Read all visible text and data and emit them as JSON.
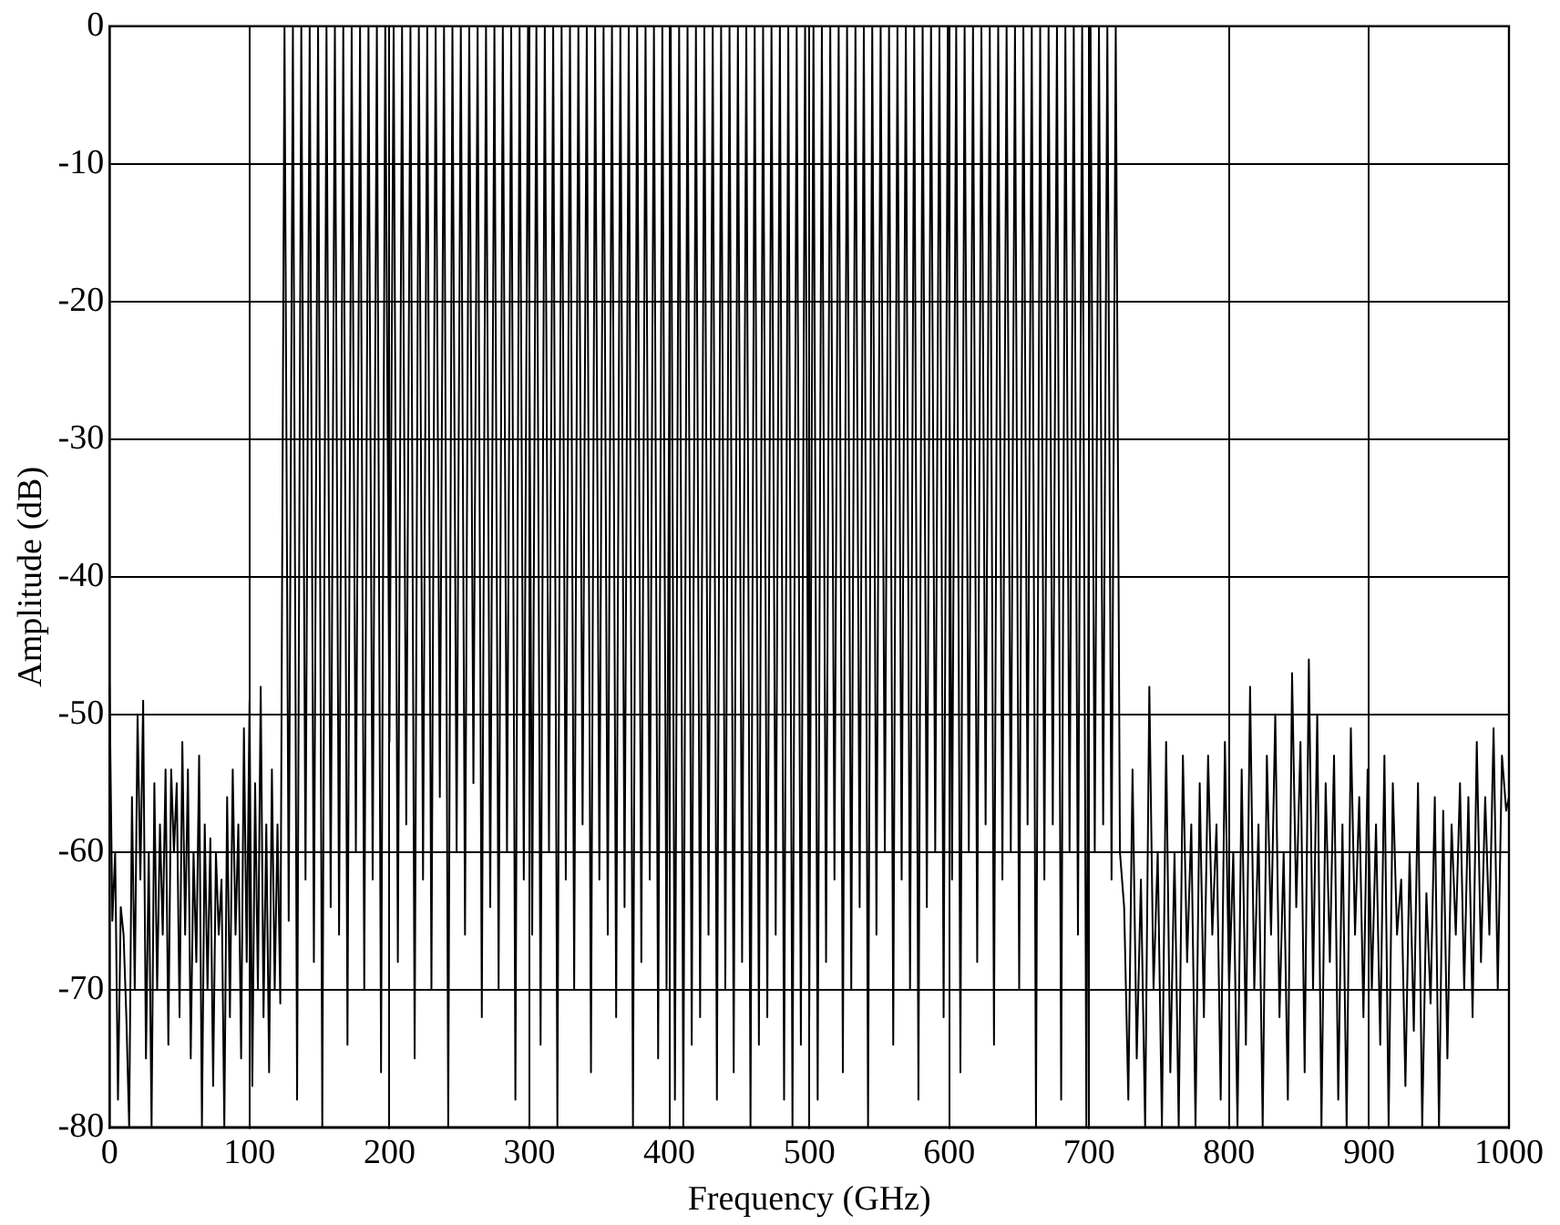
{
  "chart_data": {
    "type": "line",
    "xlabel": "Frequency (GHz)",
    "ylabel": "Amplitude (dB)",
    "color": "#000000",
    "marker": "none",
    "grid": true,
    "xlim": [
      0,
      1000
    ],
    "ylim": [
      -80,
      0
    ],
    "xticks": [
      0,
      100,
      200,
      300,
      400,
      500,
      600,
      700,
      800,
      900,
      1000
    ],
    "yticks": [
      -80,
      -70,
      -60,
      -50,
      -40,
      -30,
      -20,
      -10,
      0
    ],
    "x": [
      0,
      2,
      4,
      6,
      8,
      10,
      12,
      14,
      16,
      18,
      20,
      22,
      24,
      26,
      28,
      30,
      32,
      34,
      36,
      38,
      40,
      42,
      44,
      46,
      48,
      50,
      52,
      54,
      56,
      58,
      60,
      62,
      64,
      66,
      68,
      70,
      72,
      74,
      76,
      78,
      80,
      82,
      84,
      86,
      88,
      90,
      92,
      94,
      96,
      98,
      100,
      102,
      104,
      106,
      108,
      110,
      112,
      114,
      116,
      118,
      120,
      122,
      125,
      128,
      131,
      134,
      137,
      140,
      143,
      146,
      149,
      152,
      155,
      158,
      161,
      164,
      167,
      170,
      173,
      176,
      179,
      182,
      185,
      188,
      191,
      194,
      197,
      200,
      203,
      206,
      209,
      212,
      215,
      218,
      221,
      224,
      227,
      230,
      233,
      236,
      239,
      242,
      245,
      248,
      251,
      254,
      257,
      260,
      263,
      266,
      269,
      272,
      275,
      278,
      281,
      284,
      287,
      290,
      293,
      296,
      299,
      302,
      305,
      308,
      311,
      314,
      317,
      320,
      323,
      326,
      329,
      332,
      335,
      338,
      341,
      344,
      347,
      350,
      353,
      356,
      359,
      362,
      365,
      368,
      371,
      374,
      377,
      380,
      383,
      386,
      389,
      392,
      395,
      398,
      401,
      404,
      407,
      410,
      413,
      416,
      419,
      422,
      425,
      428,
      431,
      434,
      437,
      440,
      443,
      446,
      449,
      452,
      455,
      458,
      461,
      464,
      467,
      470,
      473,
      476,
      479,
      482,
      485,
      488,
      491,
      494,
      497,
      500,
      503,
      506,
      509,
      512,
      515,
      518,
      521,
      524,
      527,
      530,
      533,
      536,
      539,
      542,
      545,
      548,
      551,
      554,
      557,
      560,
      563,
      566,
      569,
      572,
      575,
      578,
      581,
      584,
      587,
      590,
      593,
      596,
      599,
      602,
      605,
      608,
      611,
      614,
      617,
      620,
      623,
      626,
      629,
      632,
      635,
      638,
      641,
      644,
      647,
      650,
      653,
      656,
      659,
      662,
      665,
      668,
      671,
      674,
      677,
      680,
      683,
      686,
      689,
      692,
      695,
      698,
      701,
      704,
      707,
      710,
      713,
      716,
      719,
      722,
      725,
      728,
      731,
      734,
      737,
      740,
      743,
      746,
      749,
      752,
      755,
      758,
      761,
      764,
      767,
      770,
      773,
      776,
      779,
      782,
      785,
      788,
      791,
      794,
      797,
      800,
      803,
      806,
      809,
      812,
      815,
      818,
      821,
      824,
      827,
      830,
      833,
      836,
      839,
      842,
      845,
      848,
      851,
      854,
      857,
      860,
      863,
      866,
      869,
      872,
      875,
      878,
      881,
      884,
      887,
      890,
      893,
      896,
      899,
      902,
      905,
      908,
      911,
      914,
      917,
      920,
      923,
      926,
      929,
      932,
      935,
      938,
      941,
      944,
      947,
      950,
      953,
      956,
      959,
      962,
      965,
      968,
      971,
      974,
      977,
      980,
      983,
      986,
      989,
      992,
      995,
      998,
      1000
    ],
    "values": [
      -48,
      -65,
      -60,
      -78,
      -64,
      -66,
      -72,
      -80,
      -56,
      -70,
      -50,
      -62,
      -49,
      -75,
      -60,
      -80,
      -55,
      -70,
      -58,
      -66,
      -54,
      -74,
      -54,
      -60,
      -55,
      -72,
      -52,
      -66,
      -54,
      -75,
      -60,
      -68,
      -53,
      -80,
      -58,
      -70,
      -59,
      -77,
      -60,
      -66,
      -62,
      -80,
      -56,
      -72,
      -54,
      -66,
      -58,
      -75,
      -51,
      -68,
      -49,
      -77,
      -55,
      -70,
      -48,
      -72,
      -58,
      -76,
      -54,
      -70,
      -58,
      -71,
      0,
      -65,
      0,
      -78,
      0,
      -62,
      0,
      -68,
      0,
      -80,
      0,
      -64,
      0,
      -66,
      0,
      -74,
      0,
      -60,
      0,
      -70,
      0,
      -62,
      0,
      -76,
      0,
      -52,
      0,
      -68,
      0,
      -58,
      0,
      -75,
      0,
      -62,
      0,
      -70,
      0,
      -56,
      0,
      -80,
      0,
      -60,
      0,
      -66,
      0,
      -55,
      0,
      -72,
      0,
      -64,
      0,
      -70,
      0,
      -60,
      0,
      -78,
      0,
      -62,
      0,
      -66,
      0,
      -74,
      0,
      -60,
      0,
      -80,
      0,
      -62,
      0,
      -70,
      0,
      -58,
      0,
      -76,
      0,
      -62,
      0,
      -66,
      0,
      -72,
      0,
      -64,
      0,
      -80,
      0,
      -68,
      0,
      -62,
      0,
      -75,
      0,
      -70,
      0,
      -78,
      0,
      -80,
      0,
      -74,
      0,
      -72,
      0,
      -66,
      0,
      -78,
      0,
      -70,
      0,
      -76,
      0,
      -68,
      0,
      -80,
      0,
      -74,
      0,
      -72,
      0,
      -66,
      0,
      -78,
      0,
      -80,
      0,
      -74,
      0,
      -72,
      0,
      -78,
      0,
      -68,
      0,
      -62,
      0,
      -76,
      0,
      -70,
      0,
      -64,
      0,
      -80,
      0,
      -66,
      0,
      -60,
      0,
      -74,
      0,
      -62,
      0,
      -70,
      0,
      -78,
      0,
      -64,
      0,
      -60,
      0,
      -72,
      0,
      -62,
      0,
      -76,
      0,
      -60,
      0,
      -68,
      0,
      -58,
      0,
      -74,
      0,
      -62,
      0,
      -60,
      0,
      -70,
      0,
      -58,
      0,
      -80,
      0,
      -62,
      0,
      -58,
      0,
      -78,
      0,
      -60,
      0,
      -66,
      0,
      -80,
      0,
      -60,
      0,
      -58,
      0,
      -62,
      0,
      -60,
      -64,
      -78,
      -54,
      -75,
      -62,
      -80,
      -48,
      -70,
      -60,
      -80,
      -52,
      -76,
      -60,
      -80,
      -53,
      -68,
      -58,
      -80,
      -55,
      -72,
      -53,
      -66,
      -58,
      -78,
      -52,
      -70,
      -60,
      -80,
      -54,
      -74,
      -48,
      -70,
      -58,
      -80,
      -53,
      -66,
      -50,
      -72,
      -60,
      -78,
      -47,
      -64,
      -52,
      -76,
      -46,
      -70,
      -50,
      -80,
      -55,
      -68,
      -53,
      -78,
      -58,
      -80,
      -51,
      -66,
      -56,
      -72,
      -54,
      -70,
      -58,
      -74,
      -53,
      -80,
      -55,
      -66,
      -62,
      -77,
      -60,
      -73,
      -55,
      -80,
      -63,
      -71,
      -56,
      -80,
      -57,
      -75,
      -58,
      -66,
      -55,
      -70,
      -56,
      -72,
      -52,
      -68,
      -56,
      -66,
      -51,
      -70,
      -53,
      -57,
      -56
    ]
  }
}
